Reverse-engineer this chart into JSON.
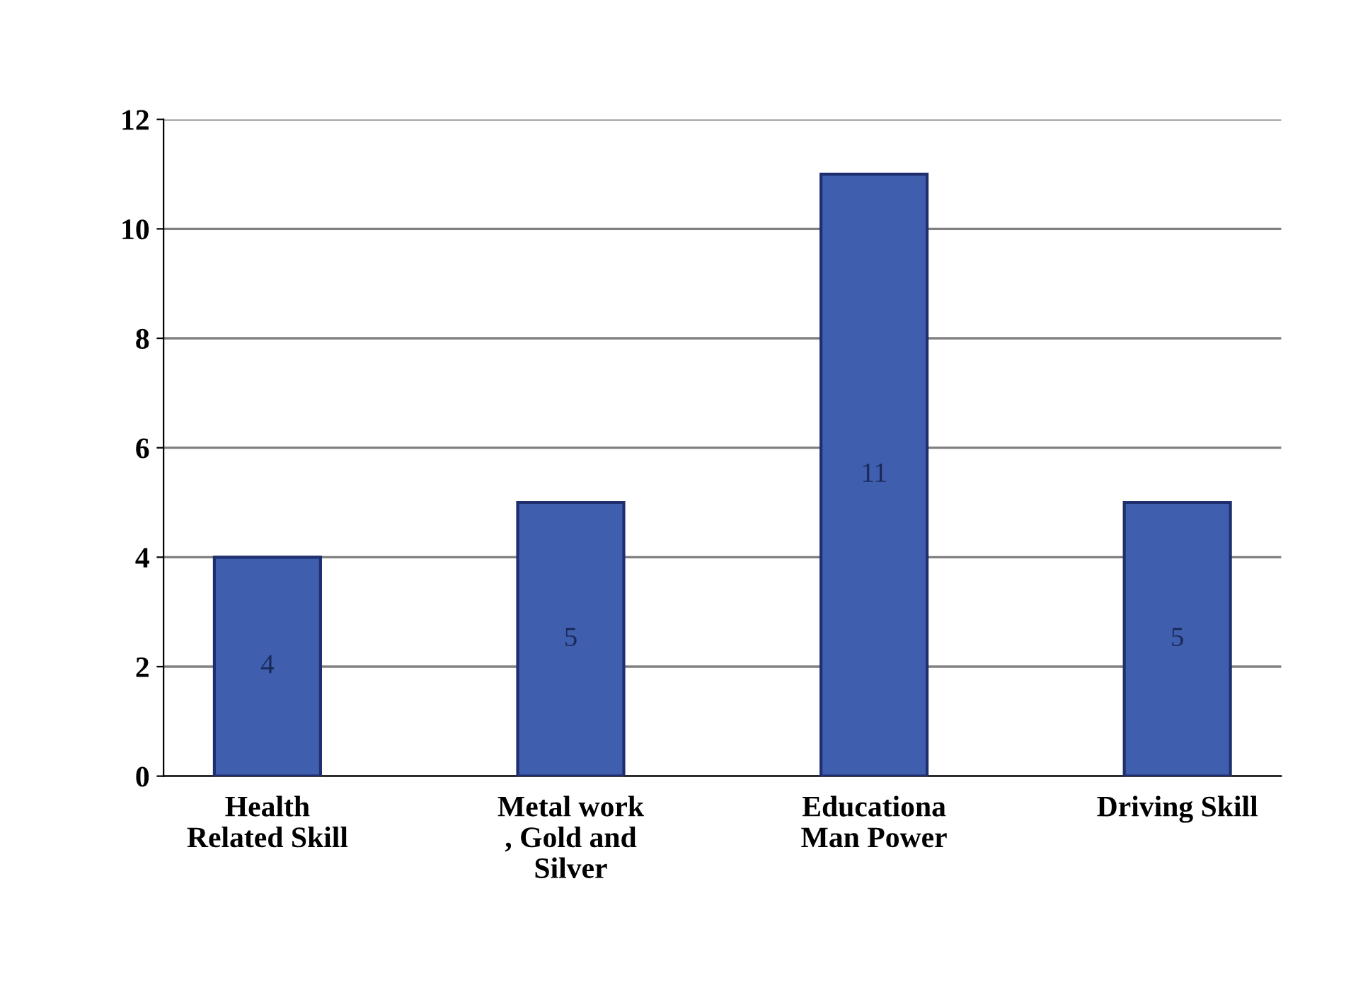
{
  "chart_data": {
    "type": "bar",
    "categories": [
      "Health\nRelated Skill",
      "Metal work\n, Gold and\nSilver",
      "Educationa\nMan Power",
      "Driving Skill"
    ],
    "values": [
      4,
      5,
      11,
      5
    ],
    "color": "#3f5fae",
    "ylim": [
      0,
      12
    ],
    "yticks": [
      0,
      2,
      4,
      6,
      8,
      10,
      12
    ],
    "grid": "y",
    "data_labels": true
  }
}
